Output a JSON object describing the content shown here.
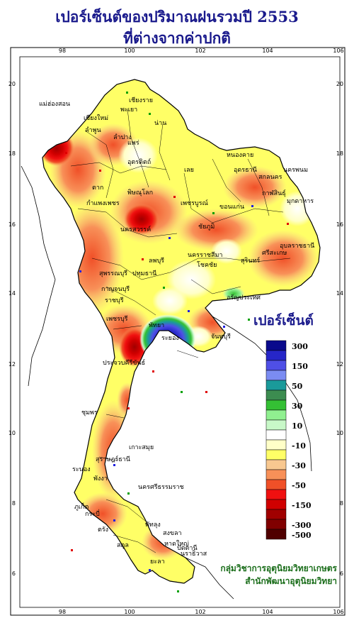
{
  "title_line1": "เปอร์เซ็นต์ของปริมาณฝนรวมปี 2553",
  "title_line2": "ที่ต่างจากค่าปกติ",
  "legend": {
    "title": "เปอร์เซ็นต์",
    "classes": [
      {
        "color": "#0a0a8c",
        "label": "300"
      },
      {
        "color": "#2626c8",
        "label": ""
      },
      {
        "color": "#4f4fe6",
        "label": "150"
      },
      {
        "color": "#7b8cf2",
        "label": ""
      },
      {
        "color": "#1a9a9a",
        "label": "50"
      },
      {
        "color": "#3c8c50",
        "label": ""
      },
      {
        "color": "#34c034",
        "label": "30"
      },
      {
        "color": "#90f090",
        "label": ""
      },
      {
        "color": "#c8f8c8",
        "label": "10"
      },
      {
        "color": "#ffffff",
        "label": ""
      },
      {
        "color": "#ffffc8",
        "label": "-10"
      },
      {
        "color": "#ffff66",
        "label": ""
      },
      {
        "color": "#f8c890",
        "label": "-30"
      },
      {
        "color": "#f89058",
        "label": ""
      },
      {
        "color": "#f05028",
        "label": "-50"
      },
      {
        "color": "#f01010",
        "label": ""
      },
      {
        "color": "#d00000",
        "label": "-150"
      },
      {
        "color": "#a00000",
        "label": ""
      },
      {
        "color": "#800000",
        "label": "-300"
      },
      {
        "color": "#500000",
        "label": "-500"
      }
    ]
  },
  "axes": {
    "x_ticks": [
      "98",
      "100",
      "102",
      "104",
      "106"
    ],
    "y_ticks": [
      "20",
      "18",
      "16",
      "14",
      "12",
      "10",
      "8",
      "6"
    ]
  },
  "places": [
    "เชียงราย",
    "แม่ฮ่องสอน",
    "พะเยา",
    "เชียงใหม่",
    "ลำพูน",
    "น่าน",
    "ลำปาง",
    "แพร่",
    "อุตรดิตถ์",
    "หนองคาย",
    "อุดรธานี",
    "สกลนคร",
    "นครพนม",
    "เลย",
    "กาฬสินธุ์",
    "มุกดาหาร",
    "ตาก",
    "พิษณุโลก",
    "ขอนแก่น",
    "กำแพงเพชร",
    "เพชรบูรณ์",
    "ชัยภูมิ",
    "นครสวรรค์",
    "อุบลราชธานี",
    "นครราชสีมา",
    "ศรีสะเกษ",
    "สุรินทร์",
    "ลพบุรี",
    "สุพรรณบุรี",
    "โชคชัย",
    "ปทุมธานี",
    "กาญจนบุรี",
    "อรัญประเทศ",
    "ราชบุรี",
    "เพชรบุรี",
    "พัทยา",
    "ระยอง",
    "จันทบุรี",
    "ประจวบคีรีขันธ์",
    "ชุมพร",
    "เกาะสมุย",
    "ระนอง",
    "สุราษฎร์ธานี",
    "พังงา",
    "นครศรีธรรมราช",
    "ภูเก็ต",
    "กระบี่",
    "ตรัง",
    "พัทลุง",
    "สงขลา",
    "หาดใหญ่",
    "ปัตตานี",
    "นราธิวาส",
    "สตูล",
    "ยะลา"
  ],
  "credit_line1": "กลุ่มวิชาการอุตุนิยมวิทยาเกษตร",
  "credit_line2": "สำนักพัฒนาอุตุนิยมวิทยา"
}
